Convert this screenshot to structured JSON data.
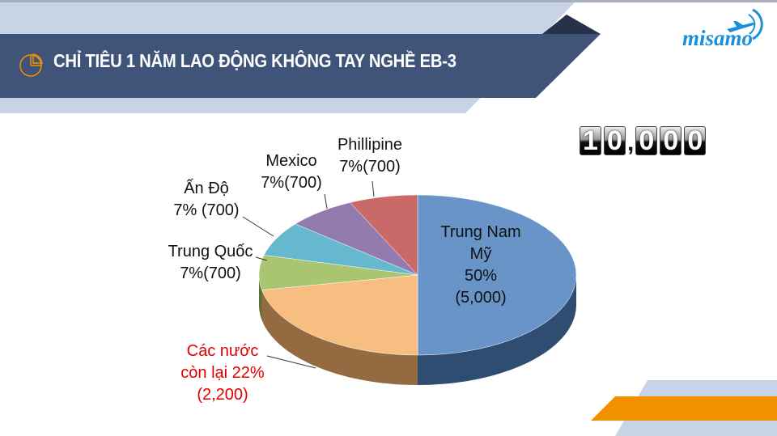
{
  "header": {
    "title": "CHỈ TIÊU 1 NĂM LAO ĐỘNG KHÔNG TAY NGHỀ EB-3",
    "icon": "pie-chart-icon"
  },
  "logo": {
    "text": "misamo",
    "icon": "airplane-icon"
  },
  "counter": {
    "digits": [
      "1",
      "0",
      ",",
      "0",
      "0",
      "0"
    ],
    "value": "10,000"
  },
  "colors": {
    "header_band": "#3f5478",
    "light_band": "#c8d4e6",
    "accent_orange": "#f29100",
    "dark_corner": "#26324a"
  },
  "chart_data": {
    "type": "pie",
    "style": "3d",
    "total": 10000,
    "slices": [
      {
        "label_lines": [
          "Trung Nam",
          "Mỹ",
          "50%",
          "(5,000)"
        ],
        "category": "Trung Nam Mỹ",
        "percent": 50,
        "value": 5000,
        "color": "#4f81bd",
        "label_color": "#111111"
      },
      {
        "label_lines": [
          "Các nước",
          "còn lại 22%",
          "(2,200)"
        ],
        "category": "Các nước còn lại",
        "percent": 22,
        "value": 2200,
        "color": "#f6b26b",
        "label_color": "#e00000"
      },
      {
        "label_lines": [
          "Trung Quốc",
          "7%(700)"
        ],
        "category": "Trung Quốc",
        "percent": 7,
        "value": 700,
        "color": "#9bbb59",
        "label_color": "#111111"
      },
      {
        "label_lines": [
          "Ấn Độ",
          "7% (700)"
        ],
        "category": "Ấn Độ",
        "percent": 7,
        "value": 700,
        "color": "#4bacc6",
        "label_color": "#111111"
      },
      {
        "label_lines": [
          "Mexico",
          "7%(700)"
        ],
        "category": "Mexico",
        "percent": 7,
        "value": 700,
        "color": "#8064a2",
        "label_color": "#111111"
      },
      {
        "label_lines": [
          "Phillipine",
          "7%(700)"
        ],
        "category": "Phillipine",
        "percent": 7,
        "value": 700,
        "color": "#c0504d",
        "label_color": "#111111"
      }
    ]
  }
}
